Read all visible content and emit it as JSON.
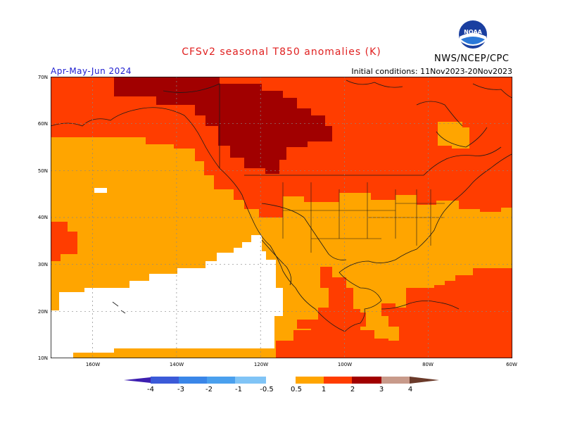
{
  "header": {
    "title": "CFSv2 seasonal T850 anomalies (K)",
    "period": "Apr-May-Jun 2024",
    "initial_conditions": "Initial conditions: 11Nov2023-20Nov2023",
    "agency": "NWS/NCEP/CPC",
    "logo_text": "NOAA"
  },
  "colors": {
    "title": "#e02020",
    "period": "#2020d0",
    "anom_0_5_1": "#ffa500",
    "anom_1_2": "#ff3d00",
    "anom_2_3": "#a10000",
    "anom_neg_0_5_0_5": "#ffffff"
  },
  "map": {
    "lat_labels": [
      "70N",
      "60N",
      "50N",
      "40N",
      "30N",
      "20N",
      "10N"
    ],
    "lon_labels": [
      "160W",
      "140W",
      "120W",
      "100W",
      "80W",
      "60W"
    ]
  },
  "colorbar": {
    "labels": [
      "-4",
      "-3",
      "-2",
      "-1",
      "-0.5",
      "0.5",
      "1",
      "2",
      "3",
      "4"
    ],
    "colors": [
      "#3d1fb0",
      "#3b5ad8",
      "#3a86e8",
      "#4aa0ee",
      "#80c4f6",
      "#ffffff",
      "#ffa500",
      "#ff3d00",
      "#a10000",
      "#c89a8a",
      "#6b3a2a"
    ]
  }
}
